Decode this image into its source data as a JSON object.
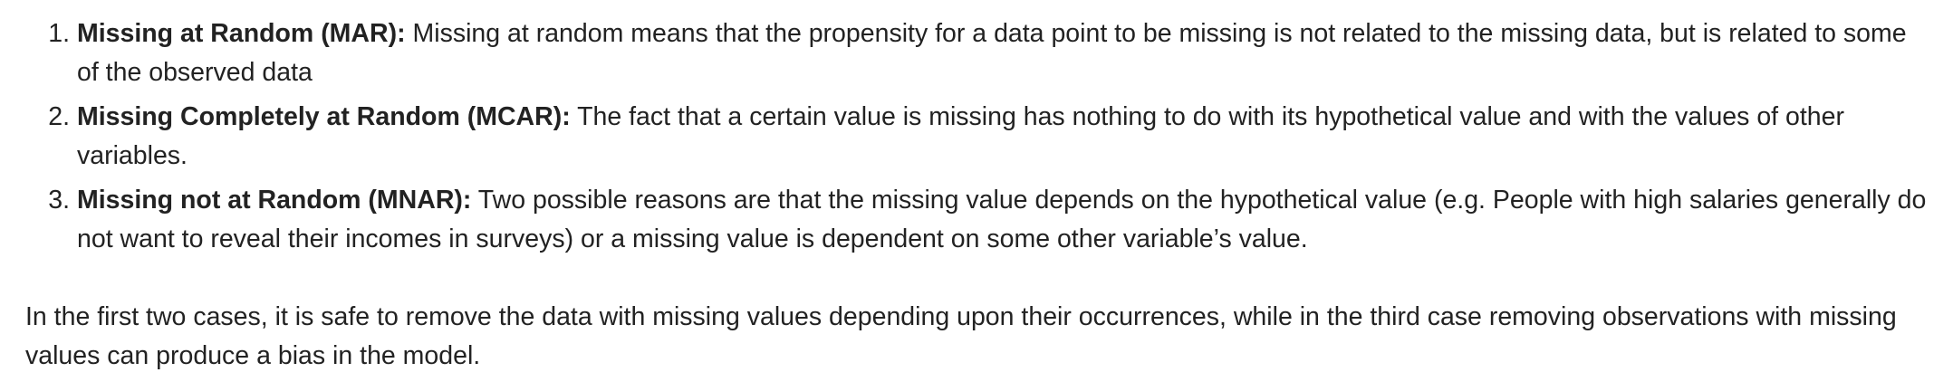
{
  "list": {
    "items": [
      {
        "number": "1.",
        "term": "Missing at Random (MAR):",
        "text": " Missing at random means that the propensity for a data point to be missing is not related to the missing data, but is related to some of the observed data"
      },
      {
        "number": "2.",
        "term": "Missing Completely at Random (MCAR):",
        "text": " The fact that a certain value is missing has nothing to do with its hypothetical value and with the values of other variables."
      },
      {
        "number": "3.",
        "term": "Missing not at Random (MNAR):",
        "text": " Two possible reasons are that the missing value depends on the hypothetical value (e.g. People with high salaries generally do not want to reveal their incomes in surveys) or a missing value is dependent on some other variable’s value."
      }
    ]
  },
  "summary": {
    "text": "In the first two cases, it is safe to remove the data with missing values depending upon their occurrences, while in the third case removing observations with missing values can produce a bias in the model."
  }
}
